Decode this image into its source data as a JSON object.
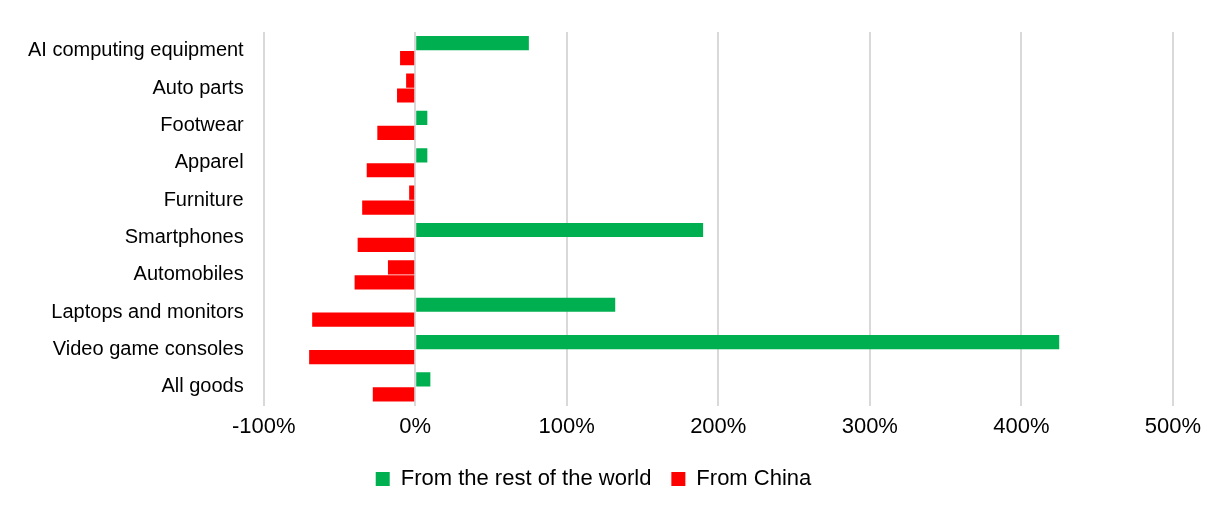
{
  "chart_data": {
    "type": "bar",
    "orientation": "horizontal",
    "categories": [
      "AI computing equipment",
      "Auto parts",
      "Footwear",
      "Apparel",
      "Furniture",
      "Smartphones",
      "Automobiles",
      "Laptops and monitors",
      "Video game consoles",
      "All goods"
    ],
    "series": [
      {
        "name": "From the rest of the world",
        "color": "#00b050",
        "colors": [
          "#00b050",
          "#ff0000",
          "#00b050",
          "#00b050",
          "#ff0000",
          "#00b050",
          "#ff0000",
          "#00b050",
          "#00b050",
          "#00b050"
        ],
        "values": [
          75,
          -6,
          8,
          8,
          -4,
          190,
          -18,
          132,
          425,
          10
        ]
      },
      {
        "name": "From China",
        "color": "#ff0000",
        "values": [
          -10,
          -12,
          -25,
          -32,
          -35,
          -38,
          -40,
          -68,
          -70,
          -28
        ]
      }
    ],
    "xlim": [
      -100,
      500
    ],
    "xticks": [
      {
        "value": -100,
        "label": "-100%"
      },
      {
        "value": 0,
        "label": "0%"
      },
      {
        "value": 100,
        "label": "100%"
      },
      {
        "value": 200,
        "label": "200%"
      },
      {
        "value": 300,
        "label": "300%"
      },
      {
        "value": 400,
        "label": "400%"
      },
      {
        "value": 500,
        "label": "500%"
      }
    ],
    "grid": "x",
    "legend": "bottom"
  }
}
